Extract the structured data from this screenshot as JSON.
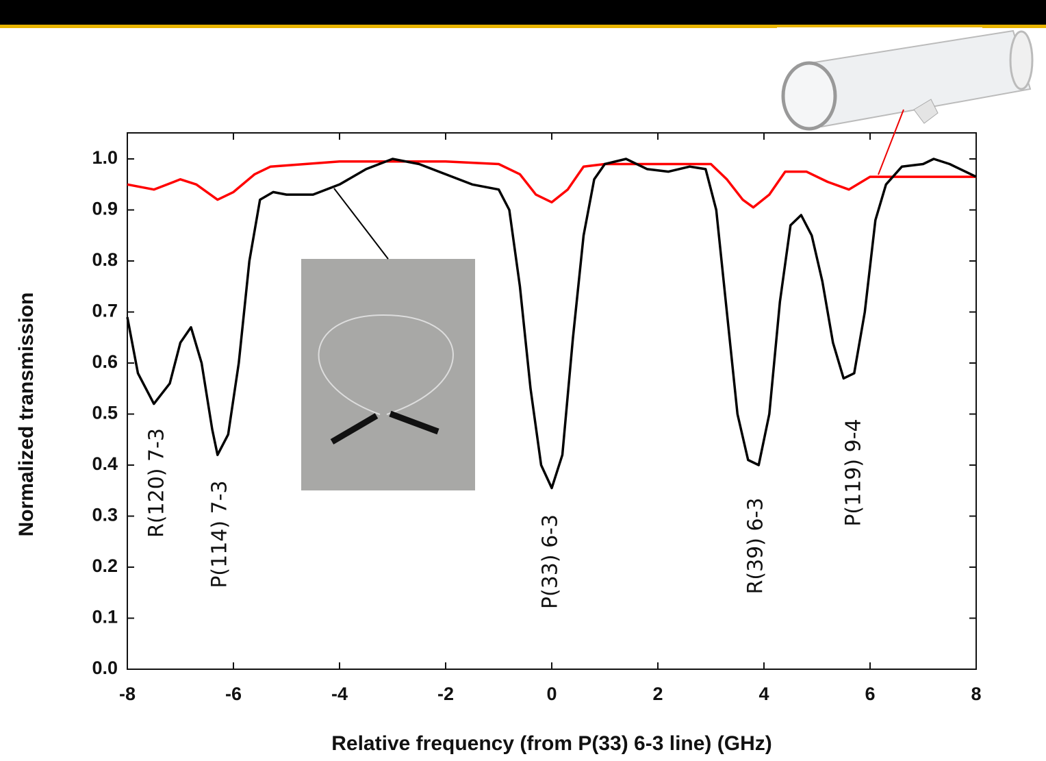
{
  "chart_data": {
    "type": "line",
    "xlabel": "Relative frequency (from P(33) 6-3 line) (GHz)",
    "ylabel": "Normalized transmission",
    "xlim": [
      -8,
      8
    ],
    "ylim": [
      0,
      1.0
    ],
    "xticks": [
      -8,
      -6,
      -4,
      -2,
      0,
      2,
      4,
      6,
      8
    ],
    "yticks": [
      {
        "value": 0,
        "label": "0.0"
      },
      {
        "value": 0.1,
        "label": "0.1"
      },
      {
        "value": 0.2,
        "label": "0.2"
      },
      {
        "value": 0.3,
        "label": "0.3"
      },
      {
        "value": 0.4,
        "label": "0.4"
      },
      {
        "value": 0.5,
        "label": "0.5"
      },
      {
        "value": 0.6,
        "label": "0.6"
      },
      {
        "value": 0.7,
        "label": "0.7"
      },
      {
        "value": 0.8,
        "label": "0.8"
      },
      {
        "value": 0.9,
        "label": "0.9"
      },
      {
        "value": 1.0,
        "label": "1.0"
      }
    ],
    "grid": false,
    "series": [
      {
        "color": "#000000",
        "x": [
          -8,
          -7.8,
          -7.5,
          -7.2,
          -7.0,
          -6.8,
          -6.6,
          -6.4,
          -6.3,
          -6.1,
          -5.9,
          -5.7,
          -5.5,
          -5.25,
          -5,
          -4.5,
          -4,
          -3.5,
          -3,
          -2.5,
          -2,
          -1.5,
          -1,
          -0.8,
          -0.6,
          -0.4,
          -0.2,
          0,
          0.2,
          0.4,
          0.6,
          0.8,
          1.0,
          1.4,
          1.8,
          2.2,
          2.6,
          2.9,
          3.1,
          3.3,
          3.5,
          3.7,
          3.9,
          4.1,
          4.3,
          4.5,
          4.7,
          4.9,
          5.1,
          5.3,
          5.5,
          5.7,
          5.9,
          6.1,
          6.3,
          6.6,
          7.0,
          7.2,
          7.5,
          8
        ],
        "values": [
          0.69,
          0.58,
          0.52,
          0.56,
          0.64,
          0.67,
          0.6,
          0.47,
          0.42,
          0.46,
          0.6,
          0.8,
          0.92,
          0.935,
          0.93,
          0.93,
          0.95,
          0.98,
          1.0,
          0.99,
          0.97,
          0.95,
          0.94,
          0.9,
          0.75,
          0.55,
          0.4,
          0.355,
          0.42,
          0.65,
          0.85,
          0.96,
          0.99,
          1.0,
          0.98,
          0.975,
          0.985,
          0.98,
          0.9,
          0.7,
          0.5,
          0.41,
          0.4,
          0.5,
          0.72,
          0.87,
          0.89,
          0.85,
          0.76,
          0.64,
          0.57,
          0.58,
          0.7,
          0.88,
          0.95,
          0.985,
          0.99,
          1.0,
          0.99,
          0.965
        ]
      },
      {
        "color": "#ff0000",
        "x": [
          -8,
          -7.5,
          -7,
          -6.7,
          -6.3,
          -6,
          -5.6,
          -5.3,
          -4,
          -3,
          -2,
          -1,
          -0.6,
          -0.3,
          0,
          0.3,
          0.6,
          1,
          2,
          3,
          3.3,
          3.6,
          3.8,
          4.1,
          4.4,
          4.8,
          5.2,
          5.6,
          6,
          7,
          8
        ],
        "values": [
          0.95,
          0.94,
          0.96,
          0.95,
          0.92,
          0.935,
          0.97,
          0.985,
          0.995,
          0.995,
          0.995,
          0.99,
          0.97,
          0.93,
          0.915,
          0.94,
          0.985,
          0.99,
          0.99,
          0.99,
          0.96,
          0.92,
          0.905,
          0.93,
          0.975,
          0.975,
          0.955,
          0.94,
          0.965,
          0.965,
          0.965
        ]
      }
    ],
    "annotations": [
      "R(120) 7-3",
      "P(114) 7-3",
      "P(33) 6-3",
      "R(39) 6-3",
      "P(119) 9-4"
    ]
  }
}
